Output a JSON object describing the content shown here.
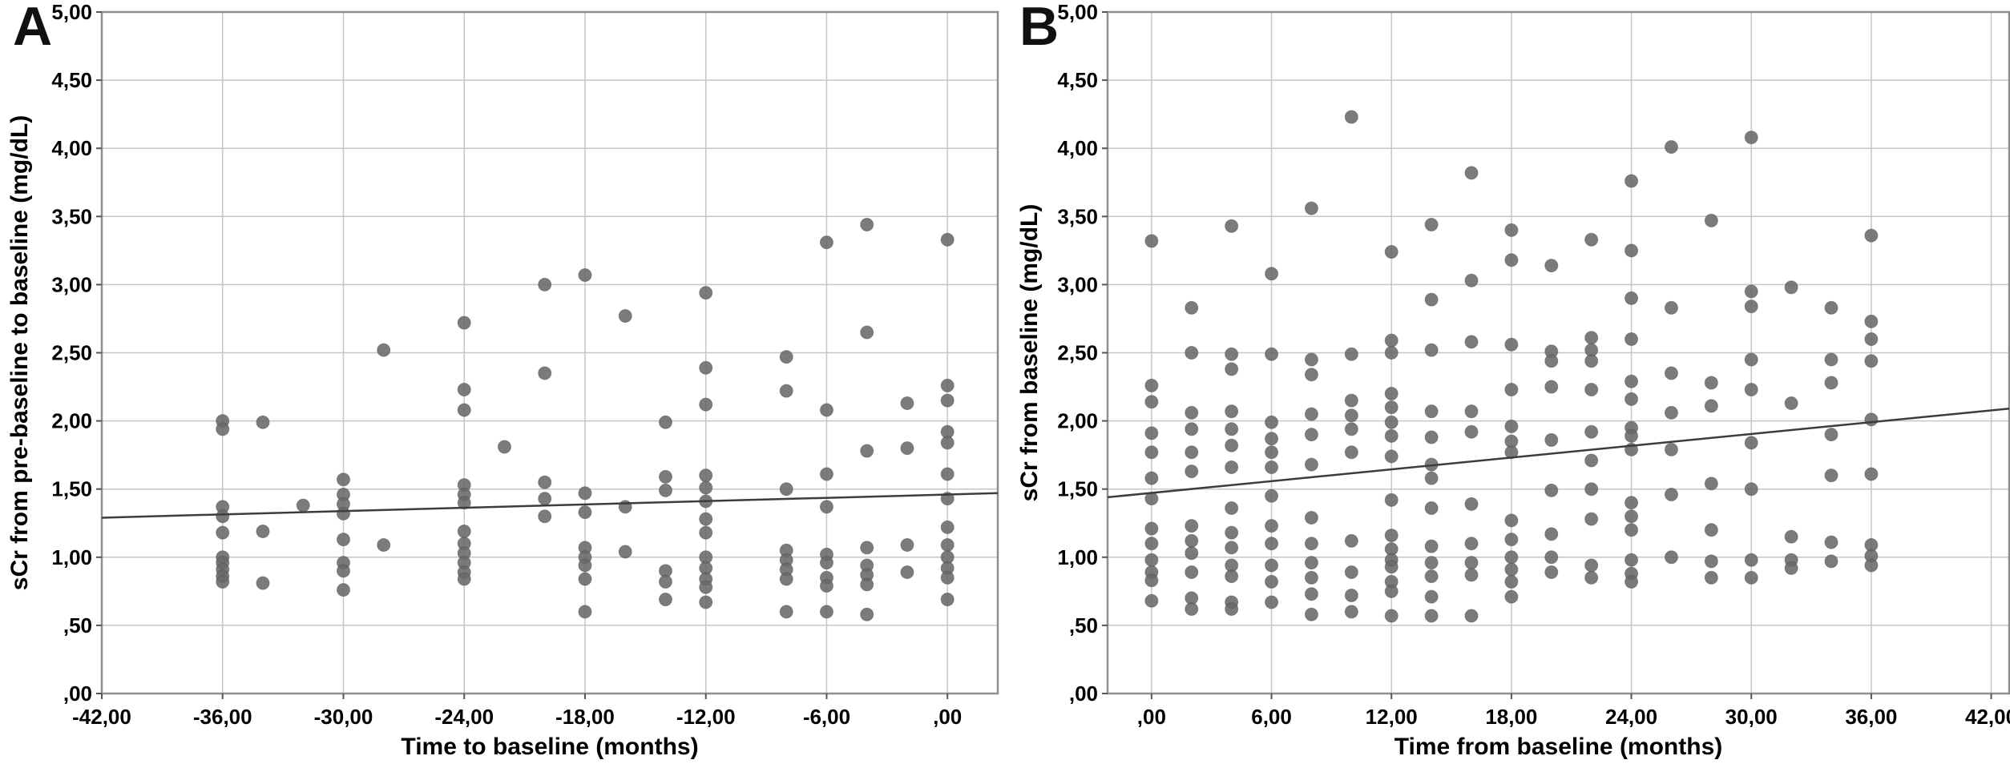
{
  "figure": {
    "background": "#ffffff",
    "colors": {
      "point": "#696969",
      "point_edge": "#4f4f4f",
      "fit_line": "#3c3c3c",
      "grid": "#c6c6c6",
      "frame": "#8f8f8f",
      "tick": "#555555",
      "text": "#000000"
    }
  },
  "chart_data": [
    {
      "type": "scatter",
      "panel_label": "A",
      "xlabel": "Time to baseline (months)",
      "ylabel": "sCr from pre-baseline to baseline (mg/dL)",
      "xlim": [
        -42,
        2.5
      ],
      "ylim": [
        0,
        5
      ],
      "grid": true,
      "legend": null,
      "xticks": [
        -42,
        -36,
        -30,
        -24,
        -18,
        -12,
        -6,
        0
      ],
      "xtick_labels": [
        "-42,00",
        "-36,00",
        "-30,00",
        "-24,00",
        "-18,00",
        "-12,00",
        "-6,00",
        ",00"
      ],
      "yticks": [
        0,
        0.5,
        1,
        1.5,
        2,
        2.5,
        3,
        3.5,
        4,
        4.5,
        5
      ],
      "ytick_labels": [
        ",00",
        ",50",
        "1,00",
        "1,50",
        "2,00",
        "2,50",
        "3,00",
        "3,50",
        "4,00",
        "4,50",
        "5,00"
      ],
      "fit_line": {
        "x1": -42,
        "y1": 1.29,
        "x2": 2.5,
        "y2": 1.47
      },
      "points": [
        [
          -36,
          2.0
        ],
        [
          -36,
          1.94
        ],
        [
          -36,
          1.37
        ],
        [
          -36,
          1.3
        ],
        [
          -36,
          1.18
        ],
        [
          -36,
          1.0
        ],
        [
          -36,
          0.96
        ],
        [
          -36,
          0.91
        ],
        [
          -36,
          0.86
        ],
        [
          -36,
          0.82
        ],
        [
          -34,
          1.99
        ],
        [
          -34,
          1.19
        ],
        [
          -34,
          0.81
        ],
        [
          -32,
          1.38
        ],
        [
          -30,
          1.57
        ],
        [
          -30,
          1.46
        ],
        [
          -30,
          1.39
        ],
        [
          -30,
          1.32
        ],
        [
          -30,
          1.13
        ],
        [
          -30,
          0.96
        ],
        [
          -30,
          0.9
        ],
        [
          -30,
          0.76
        ],
        [
          -28,
          2.52
        ],
        [
          -28,
          1.09
        ],
        [
          -24,
          2.72
        ],
        [
          -24,
          2.23
        ],
        [
          -24,
          2.08
        ],
        [
          -24,
          1.53
        ],
        [
          -24,
          1.46
        ],
        [
          -24,
          1.4
        ],
        [
          -24,
          1.19
        ],
        [
          -24,
          1.1
        ],
        [
          -24,
          1.03
        ],
        [
          -24,
          0.96
        ],
        [
          -24,
          0.89
        ],
        [
          -24,
          0.84
        ],
        [
          -22,
          1.81
        ],
        [
          -20,
          3.0
        ],
        [
          -20,
          2.35
        ],
        [
          -20,
          1.55
        ],
        [
          -20,
          1.43
        ],
        [
          -20,
          1.3
        ],
        [
          -18,
          3.07
        ],
        [
          -18,
          1.47
        ],
        [
          -18,
          1.33
        ],
        [
          -18,
          1.07
        ],
        [
          -18,
          1.0
        ],
        [
          -18,
          0.94
        ],
        [
          -18,
          0.84
        ],
        [
          -18,
          0.6
        ],
        [
          -16,
          2.77
        ],
        [
          -16,
          1.37
        ],
        [
          -16,
          1.04
        ],
        [
          -14,
          1.99
        ],
        [
          -14,
          1.59
        ],
        [
          -14,
          1.49
        ],
        [
          -14,
          0.9
        ],
        [
          -14,
          0.82
        ],
        [
          -14,
          0.69
        ],
        [
          -12,
          2.94
        ],
        [
          -12,
          2.39
        ],
        [
          -12,
          2.12
        ],
        [
          -12,
          1.6
        ],
        [
          -12,
          1.51
        ],
        [
          -12,
          1.41
        ],
        [
          -12,
          1.28
        ],
        [
          -12,
          1.18
        ],
        [
          -12,
          1.0
        ],
        [
          -12,
          0.92
        ],
        [
          -12,
          0.84
        ],
        [
          -12,
          0.78
        ],
        [
          -12,
          0.67
        ],
        [
          -8,
          2.47
        ],
        [
          -8,
          2.22
        ],
        [
          -8,
          1.5
        ],
        [
          -8,
          1.05
        ],
        [
          -8,
          0.98
        ],
        [
          -8,
          0.91
        ],
        [
          -8,
          0.84
        ],
        [
          -8,
          0.6
        ],
        [
          -6,
          3.31
        ],
        [
          -6,
          2.08
        ],
        [
          -6,
          1.61
        ],
        [
          -6,
          1.37
        ],
        [
          -6,
          1.02
        ],
        [
          -6,
          0.96
        ],
        [
          -6,
          0.85
        ],
        [
          -6,
          0.79
        ],
        [
          -6,
          0.6
        ],
        [
          -4,
          3.44
        ],
        [
          -4,
          2.65
        ],
        [
          -4,
          1.78
        ],
        [
          -4,
          1.07
        ],
        [
          -4,
          0.94
        ],
        [
          -4,
          0.87
        ],
        [
          -4,
          0.8
        ],
        [
          -4,
          0.58
        ],
        [
          -2,
          2.13
        ],
        [
          -2,
          1.8
        ],
        [
          -2,
          1.09
        ],
        [
          -2,
          0.89
        ],
        [
          0,
          3.33
        ],
        [
          0,
          2.26
        ],
        [
          0,
          2.15
        ],
        [
          0,
          1.92
        ],
        [
          0,
          1.84
        ],
        [
          0,
          1.61
        ],
        [
          0,
          1.43
        ],
        [
          0,
          1.22
        ],
        [
          0,
          1.09
        ],
        [
          0,
          1.0
        ],
        [
          0,
          0.92
        ],
        [
          0,
          0.85
        ],
        [
          0,
          0.69
        ]
      ]
    },
    {
      "type": "scatter",
      "panel_label": "B",
      "xlabel": "Time from baseline (months)",
      "ylabel": "sCr from baseline (mg/dL)",
      "xlim": [
        -2.2,
        42.9
      ],
      "ylim": [
        0,
        5
      ],
      "grid": true,
      "legend": null,
      "xticks": [
        0,
        6,
        12,
        18,
        24,
        30,
        36,
        42
      ],
      "xtick_labels": [
        ",00",
        "6,00",
        "12,00",
        "18,00",
        "24,00",
        "30,00",
        "36,00",
        "42,00"
      ],
      "yticks": [
        0,
        0.5,
        1,
        1.5,
        2,
        2.5,
        3,
        3.5,
        4,
        4.5,
        5
      ],
      "ytick_labels": [
        ",00",
        ",50",
        "1,00",
        "1,50",
        "2,00",
        "2,50",
        "3,00",
        "3,50",
        "4,00",
        "4,50",
        "5,00"
      ],
      "fit_line": {
        "x1": -2.2,
        "y1": 1.44,
        "x2": 42.9,
        "y2": 2.09
      },
      "points": [
        [
          0,
          3.32
        ],
        [
          0,
          2.26
        ],
        [
          0,
          2.14
        ],
        [
          0,
          1.91
        ],
        [
          0,
          1.77
        ],
        [
          0,
          1.58
        ],
        [
          0,
          1.43
        ],
        [
          0,
          1.21
        ],
        [
          0,
          1.1
        ],
        [
          0,
          0.98
        ],
        [
          0,
          0.89
        ],
        [
          0,
          0.83
        ],
        [
          0,
          0.68
        ],
        [
          2,
          2.83
        ],
        [
          2,
          2.5
        ],
        [
          2,
          2.06
        ],
        [
          2,
          1.94
        ],
        [
          2,
          1.77
        ],
        [
          2,
          1.63
        ],
        [
          2,
          1.23
        ],
        [
          2,
          1.12
        ],
        [
          2,
          1.03
        ],
        [
          2,
          0.89
        ],
        [
          2,
          0.7
        ],
        [
          2,
          0.62
        ],
        [
          4,
          3.43
        ],
        [
          4,
          2.49
        ],
        [
          4,
          2.38
        ],
        [
          4,
          2.07
        ],
        [
          4,
          1.94
        ],
        [
          4,
          1.82
        ],
        [
          4,
          1.66
        ],
        [
          4,
          1.36
        ],
        [
          4,
          1.18
        ],
        [
          4,
          1.07
        ],
        [
          4,
          0.94
        ],
        [
          4,
          0.86
        ],
        [
          4,
          0.67
        ],
        [
          4,
          0.62
        ],
        [
          6,
          3.08
        ],
        [
          6,
          2.49
        ],
        [
          6,
          1.99
        ],
        [
          6,
          1.87
        ],
        [
          6,
          1.77
        ],
        [
          6,
          1.66
        ],
        [
          6,
          1.45
        ],
        [
          6,
          1.23
        ],
        [
          6,
          1.1
        ],
        [
          6,
          0.94
        ],
        [
          6,
          0.82
        ],
        [
          6,
          0.67
        ],
        [
          8,
          3.56
        ],
        [
          8,
          2.45
        ],
        [
          8,
          2.34
        ],
        [
          8,
          2.05
        ],
        [
          8,
          1.9
        ],
        [
          8,
          1.68
        ],
        [
          8,
          1.29
        ],
        [
          8,
          1.1
        ],
        [
          8,
          0.96
        ],
        [
          8,
          0.85
        ],
        [
          8,
          0.73
        ],
        [
          8,
          0.58
        ],
        [
          10,
          4.23
        ],
        [
          10,
          2.49
        ],
        [
          10,
          2.15
        ],
        [
          10,
          2.04
        ],
        [
          10,
          1.94
        ],
        [
          10,
          1.77
        ],
        [
          10,
          1.12
        ],
        [
          10,
          0.89
        ],
        [
          10,
          0.72
        ],
        [
          10,
          0.6
        ],
        [
          12,
          3.24
        ],
        [
          12,
          2.59
        ],
        [
          12,
          2.5
        ],
        [
          12,
          2.2
        ],
        [
          12,
          2.1
        ],
        [
          12,
          1.99
        ],
        [
          12,
          1.89
        ],
        [
          12,
          1.74
        ],
        [
          12,
          1.42
        ],
        [
          12,
          1.16
        ],
        [
          12,
          1.06
        ],
        [
          12,
          0.98
        ],
        [
          12,
          0.93
        ],
        [
          12,
          0.82
        ],
        [
          12,
          0.75
        ],
        [
          12,
          0.57
        ],
        [
          14,
          3.44
        ],
        [
          14,
          2.89
        ],
        [
          14,
          2.52
        ],
        [
          14,
          2.07
        ],
        [
          14,
          1.88
        ],
        [
          14,
          1.68
        ],
        [
          14,
          1.58
        ],
        [
          14,
          1.36
        ],
        [
          14,
          1.08
        ],
        [
          14,
          0.96
        ],
        [
          14,
          0.86
        ],
        [
          14,
          0.71
        ],
        [
          14,
          0.57
        ],
        [
          16,
          3.82
        ],
        [
          16,
          3.03
        ],
        [
          16,
          2.58
        ],
        [
          16,
          2.07
        ],
        [
          16,
          1.92
        ],
        [
          16,
          1.39
        ],
        [
          16,
          1.1
        ],
        [
          16,
          0.96
        ],
        [
          16,
          0.87
        ],
        [
          16,
          0.57
        ],
        [
          18,
          3.4
        ],
        [
          18,
          3.18
        ],
        [
          18,
          2.56
        ],
        [
          18,
          2.23
        ],
        [
          18,
          1.96
        ],
        [
          18,
          1.85
        ],
        [
          18,
          1.77
        ],
        [
          18,
          1.27
        ],
        [
          18,
          1.13
        ],
        [
          18,
          1.0
        ],
        [
          18,
          0.91
        ],
        [
          18,
          0.82
        ],
        [
          18,
          0.71
        ],
        [
          20,
          3.14
        ],
        [
          20,
          2.51
        ],
        [
          20,
          2.44
        ],
        [
          20,
          2.25
        ],
        [
          20,
          1.86
        ],
        [
          20,
          1.49
        ],
        [
          20,
          1.17
        ],
        [
          20,
          1.0
        ],
        [
          20,
          0.89
        ],
        [
          22,
          3.33
        ],
        [
          22,
          2.61
        ],
        [
          22,
          2.52
        ],
        [
          22,
          2.44
        ],
        [
          22,
          2.23
        ],
        [
          22,
          1.92
        ],
        [
          22,
          1.71
        ],
        [
          22,
          1.5
        ],
        [
          22,
          1.28
        ],
        [
          22,
          0.94
        ],
        [
          22,
          0.85
        ],
        [
          24,
          3.76
        ],
        [
          24,
          3.25
        ],
        [
          24,
          2.9
        ],
        [
          24,
          2.6
        ],
        [
          24,
          2.29
        ],
        [
          24,
          2.16
        ],
        [
          24,
          1.95
        ],
        [
          24,
          1.89
        ],
        [
          24,
          1.79
        ],
        [
          24,
          1.4
        ],
        [
          24,
          1.3
        ],
        [
          24,
          1.2
        ],
        [
          24,
          0.98
        ],
        [
          24,
          0.88
        ],
        [
          24,
          0.82
        ],
        [
          26,
          4.01
        ],
        [
          26,
          2.83
        ],
        [
          26,
          2.35
        ],
        [
          26,
          2.06
        ],
        [
          26,
          1.79
        ],
        [
          26,
          1.46
        ],
        [
          26,
          1.0
        ],
        [
          28,
          3.47
        ],
        [
          28,
          2.28
        ],
        [
          28,
          2.11
        ],
        [
          28,
          1.54
        ],
        [
          28,
          1.2
        ],
        [
          28,
          0.97
        ],
        [
          28,
          0.85
        ],
        [
          30,
          4.08
        ],
        [
          30,
          2.95
        ],
        [
          30,
          2.84
        ],
        [
          30,
          2.45
        ],
        [
          30,
          2.23
        ],
        [
          30,
          1.84
        ],
        [
          30,
          1.5
        ],
        [
          30,
          0.98
        ],
        [
          30,
          0.85
        ],
        [
          32,
          2.98
        ],
        [
          32,
          2.13
        ],
        [
          32,
          1.15
        ],
        [
          32,
          0.98
        ],
        [
          32,
          0.92
        ],
        [
          34,
          2.83
        ],
        [
          34,
          2.45
        ],
        [
          34,
          2.28
        ],
        [
          34,
          1.9
        ],
        [
          34,
          1.6
        ],
        [
          34,
          1.11
        ],
        [
          34,
          0.97
        ],
        [
          36,
          3.36
        ],
        [
          36,
          2.73
        ],
        [
          36,
          2.6
        ],
        [
          36,
          2.44
        ],
        [
          36,
          2.01
        ],
        [
          36,
          1.61
        ],
        [
          36,
          1.09
        ],
        [
          36,
          1.01
        ],
        [
          36,
          0.94
        ]
      ]
    }
  ]
}
